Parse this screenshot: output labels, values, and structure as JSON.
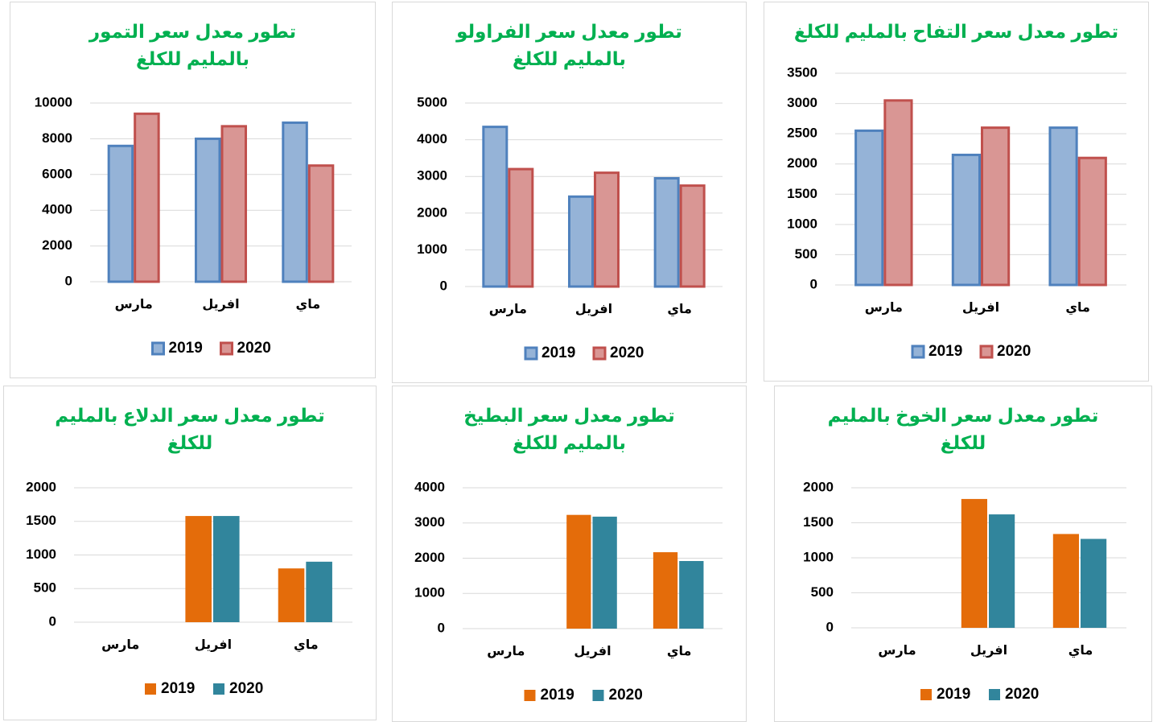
{
  "chart_data": [
    {
      "type": "bar",
      "title": "تطور معدل سعر التمور بالمليم للكلغ",
      "categories": [
        "مارس",
        "افريل",
        "ماي"
      ],
      "series": [
        {
          "name": "2019",
          "color": "#95b3d7",
          "edgecolor": "#4f81bd",
          "values": [
            7600,
            8000,
            8900
          ]
        },
        {
          "name": "2020",
          "color": "#d99694",
          "edgecolor": "#c0504d",
          "values": [
            9400,
            8700,
            6500
          ]
        }
      ],
      "ylim": [
        0,
        10000
      ],
      "yticks": [
        0,
        2000,
        4000,
        6000,
        8000,
        10000
      ],
      "grid": true,
      "legend": "bottom"
    },
    {
      "type": "bar",
      "title": "تطور معدل سعر الفراولو بالمليم للكلغ",
      "categories": [
        "مارس",
        "افريل",
        "ماي"
      ],
      "series": [
        {
          "name": "2019",
          "color": "#95b3d7",
          "edgecolor": "#4f81bd",
          "values": [
            4350,
            2450,
            2950
          ]
        },
        {
          "name": "2020",
          "color": "#d99694",
          "edgecolor": "#c0504d",
          "values": [
            3200,
            3100,
            2750
          ]
        }
      ],
      "ylim": [
        0,
        5000
      ],
      "yticks": [
        0,
        1000,
        2000,
        3000,
        4000,
        5000
      ],
      "grid": true,
      "legend": "bottom"
    },
    {
      "type": "bar",
      "title": "تطور معدل سعر التفاح بالمليم للكلغ",
      "categories": [
        "مارس",
        "افريل",
        "ماي"
      ],
      "series": [
        {
          "name": "2019",
          "color": "#95b3d7",
          "edgecolor": "#4f81bd",
          "values": [
            2550,
            2150,
            2600
          ]
        },
        {
          "name": "2020",
          "color": "#d99694",
          "edgecolor": "#c0504d",
          "values": [
            3050,
            2600,
            2100
          ]
        }
      ],
      "ylim": [
        0,
        3500
      ],
      "yticks": [
        0,
        500,
        1000,
        1500,
        2000,
        2500,
        3000,
        3500
      ],
      "grid": true,
      "legend": "bottom"
    },
    {
      "type": "bar",
      "title": "تطور معدل سعر الدلاع بالمليم للكلغ",
      "categories": [
        "مارس",
        "افريل",
        "ماي"
      ],
      "series": [
        {
          "name": "2019",
          "color": "#e46c0a",
          "values": [
            null,
            1580,
            800
          ]
        },
        {
          "name": "2020",
          "color": "#31859c",
          "values": [
            null,
            1580,
            900
          ]
        }
      ],
      "ylim": [
        0,
        2000
      ],
      "yticks": [
        0,
        500,
        1000,
        1500,
        2000
      ],
      "grid": true,
      "legend": "bottom"
    },
    {
      "type": "bar",
      "title": "تطور معدل سعر البطيخ بالمليم للكلغ",
      "categories": [
        "مارس",
        "افريل",
        "ماي"
      ],
      "series": [
        {
          "name": "2019",
          "color": "#e46c0a",
          "values": [
            null,
            3230,
            2170
          ]
        },
        {
          "name": "2020",
          "color": "#31859c",
          "values": [
            null,
            3180,
            1920
          ]
        }
      ],
      "ylim": [
        0,
        4000
      ],
      "yticks": [
        0,
        1000,
        2000,
        3000,
        4000
      ],
      "grid": true,
      "legend": "bottom"
    },
    {
      "type": "bar",
      "title": "تطور معدل سعر الخوخ بالمليم للكلغ",
      "categories": [
        "مارس",
        "افريل",
        "ماي"
      ],
      "series": [
        {
          "name": "2019",
          "color": "#e46c0a",
          "values": [
            null,
            1840,
            1340
          ]
        },
        {
          "name": "2020",
          "color": "#31859c",
          "values": [
            null,
            1620,
            1270
          ]
        }
      ],
      "ylim": [
        0,
        2000
      ],
      "yticks": [
        0,
        500,
        1000,
        1500,
        2000
      ],
      "grid": true,
      "legend": "bottom"
    }
  ]
}
